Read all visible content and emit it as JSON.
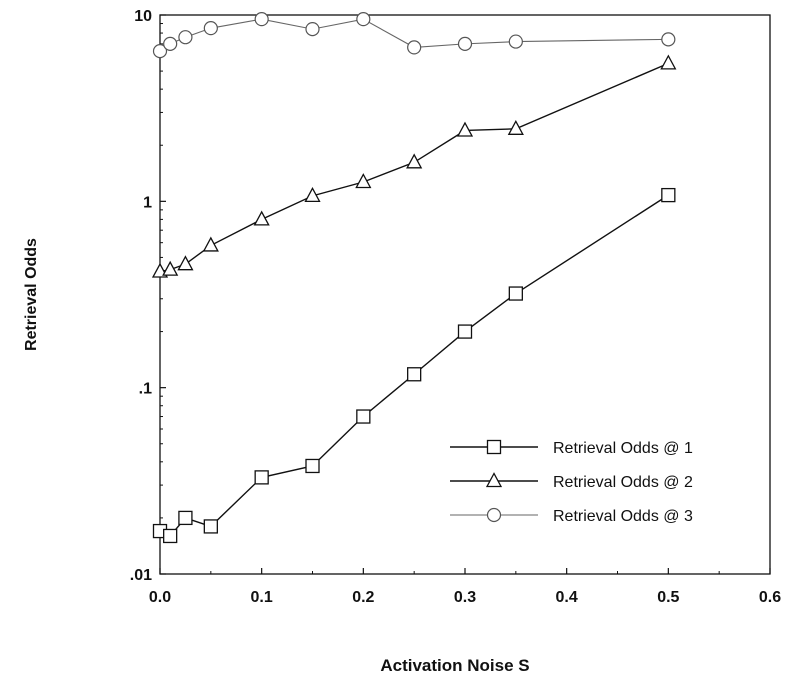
{
  "chart_data": {
    "type": "line",
    "title": "",
    "xlabel": "Activation Noise S",
    "ylabel": "Retrieval Odds",
    "xlim": [
      0.0,
      0.6
    ],
    "ylim": [
      0.01,
      10
    ],
    "yscale": "log",
    "grid": false,
    "legend_position": "bottom-right",
    "x_ticks": [
      "0.0",
      "0.1",
      "0.2",
      "0.3",
      "0.4",
      "0.5",
      "0.6"
    ],
    "x_tick_values": [
      0.0,
      0.1,
      0.2,
      0.3,
      0.4,
      0.5,
      0.6
    ],
    "y_ticks": [
      ".01",
      ".1",
      "1",
      "10"
    ],
    "y_tick_values": [
      0.01,
      0.1,
      1,
      10
    ],
    "series": [
      {
        "name": "Retrieval Odds @ 1",
        "marker": "square",
        "x": [
          0.0,
          0.01,
          0.025,
          0.05,
          0.1,
          0.15,
          0.2,
          0.25,
          0.3,
          0.35,
          0.5
        ],
        "y": [
          0.017,
          0.016,
          0.02,
          0.018,
          0.033,
          0.038,
          0.07,
          0.118,
          0.2,
          0.32,
          1.08
        ]
      },
      {
        "name": "Retrieval Odds @ 2",
        "marker": "triangle",
        "x": [
          0.0,
          0.01,
          0.025,
          0.05,
          0.1,
          0.15,
          0.2,
          0.25,
          0.3,
          0.35,
          0.5
        ],
        "y": [
          0.42,
          0.43,
          0.46,
          0.58,
          0.8,
          1.07,
          1.27,
          1.62,
          2.4,
          2.45,
          5.5
        ]
      },
      {
        "name": "Retrieval Odds @ 3",
        "marker": "circle",
        "x": [
          0.0,
          0.01,
          0.025,
          0.05,
          0.1,
          0.15,
          0.2,
          0.25,
          0.3,
          0.35,
          0.5
        ],
        "y": [
          6.4,
          7.0,
          7.6,
          8.5,
          9.5,
          8.4,
          9.5,
          6.7,
          7.0,
          7.2,
          7.4
        ]
      }
    ]
  }
}
